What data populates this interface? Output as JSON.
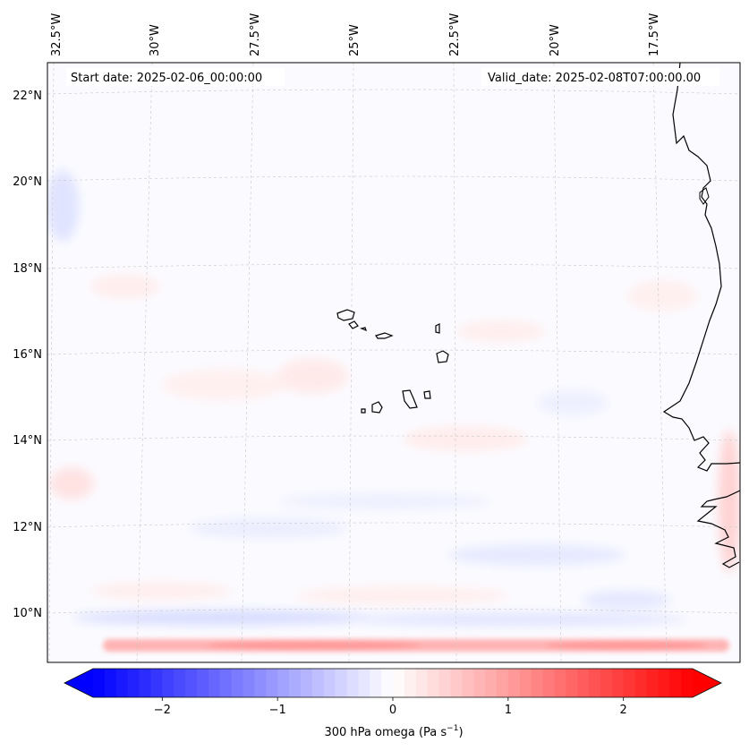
{
  "map": {
    "start_label": "Start date: 2025-02-06_00:00:00",
    "valid_label": "Valid_date: 2025-02-08T07:00:00.00",
    "lon_labels": [
      "32.5°W",
      "30°W",
      "27.5°W",
      "25°W",
      "22.5°W",
      "20°W",
      "17.5°W"
    ],
    "lat_labels": [
      "22°N",
      "20°N",
      "18°N",
      "16°N",
      "14°N",
      "12°N",
      "10°N"
    ],
    "field": "300 hPa omega",
    "units": "Pa s−1"
  },
  "colorbar": {
    "label_text": "300 hPa omega (Pa s",
    "label_exponent": "−1",
    "label_close": ")",
    "ticks": [
      "−2",
      "−1",
      "0",
      "1",
      "2"
    ],
    "tick_values": [
      -2,
      -1,
      0,
      1,
      2
    ],
    "range": [
      -2.6,
      2.6
    ],
    "colormap": "bwr",
    "low_color": "#0000ff",
    "mid_color": "#ffffff",
    "high_color": "#ff0000",
    "extend": "both"
  }
}
